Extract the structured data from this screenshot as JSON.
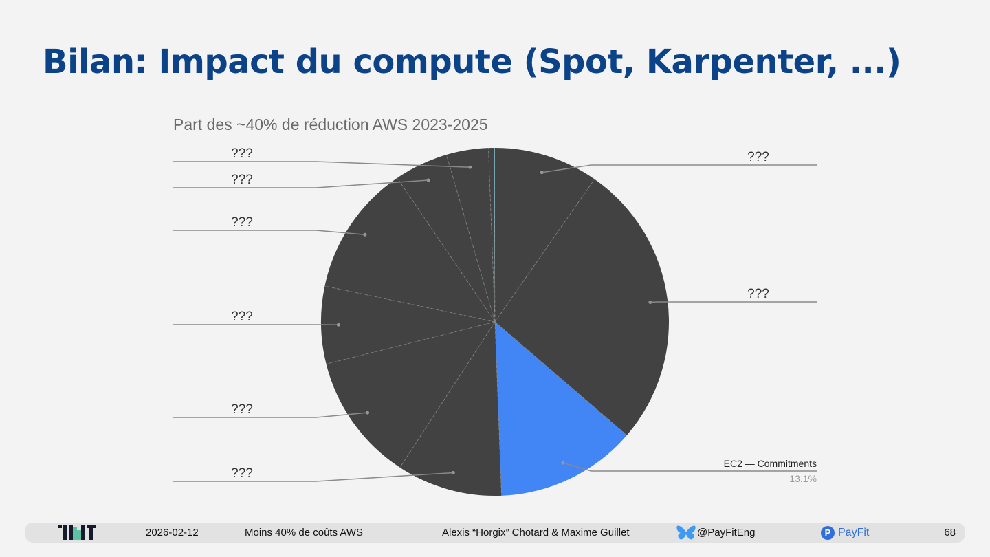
{
  "slide": {
    "title": "Bilan: Impact du compute (Spot, Karpenter, ...)"
  },
  "chart_data": {
    "type": "pie",
    "title": "Part des ~40% de réduction AWS 2023-2025",
    "start_angle_deg": 0,
    "direction": "clockwise",
    "slices": [
      {
        "label": "???",
        "value": 9.7,
        "color": "#424242",
        "label_side": "right"
      },
      {
        "label": "???",
        "value": 26.6,
        "color": "#424242",
        "label_side": "right"
      },
      {
        "label": "EC2 — Commitments",
        "value": 13.1,
        "value_label": "13.1%",
        "color": "#4285f4",
        "label_side": "right",
        "highlighted": true
      },
      {
        "label": "???",
        "value": 9.8,
        "color": "#424242",
        "label_side": "left"
      },
      {
        "label": "???",
        "value": 11.9,
        "color": "#424242",
        "label_side": "left"
      },
      {
        "label": "???",
        "value": 7.2,
        "color": "#424242",
        "label_side": "left"
      },
      {
        "label": "???",
        "value": 12.2,
        "color": "#424242",
        "label_side": "left"
      },
      {
        "label": "???",
        "value": 5.0,
        "color": "#424242",
        "label_side": "left"
      },
      {
        "label": "???",
        "value": 3.9,
        "color": "#424242",
        "label_side": "left"
      },
      {
        "label": "",
        "value": 0.5,
        "color": "#424242",
        "label_side": "none"
      },
      {
        "label": "",
        "value": 0.1,
        "color": "#76a5af",
        "label_side": "none"
      }
    ],
    "legend": "none",
    "colors": {
      "default": "#424242",
      "highlight": "#4285f4",
      "separator": "#8a8a8a",
      "leader": "#8a8a8a"
    }
  },
  "footer": {
    "date": "2026-02-12",
    "talk_title": "Moins 40% de coûts AWS",
    "authors": "Alexis “Horgix” Chotard & Maxime Guillet",
    "handle_icon": "bluesky-butterfly-icon",
    "handle": "@PayFitEng",
    "brand_icon": "payfit-logo-icon",
    "brand_glyph": "P",
    "brand": "PayFit",
    "page_number": "68"
  }
}
